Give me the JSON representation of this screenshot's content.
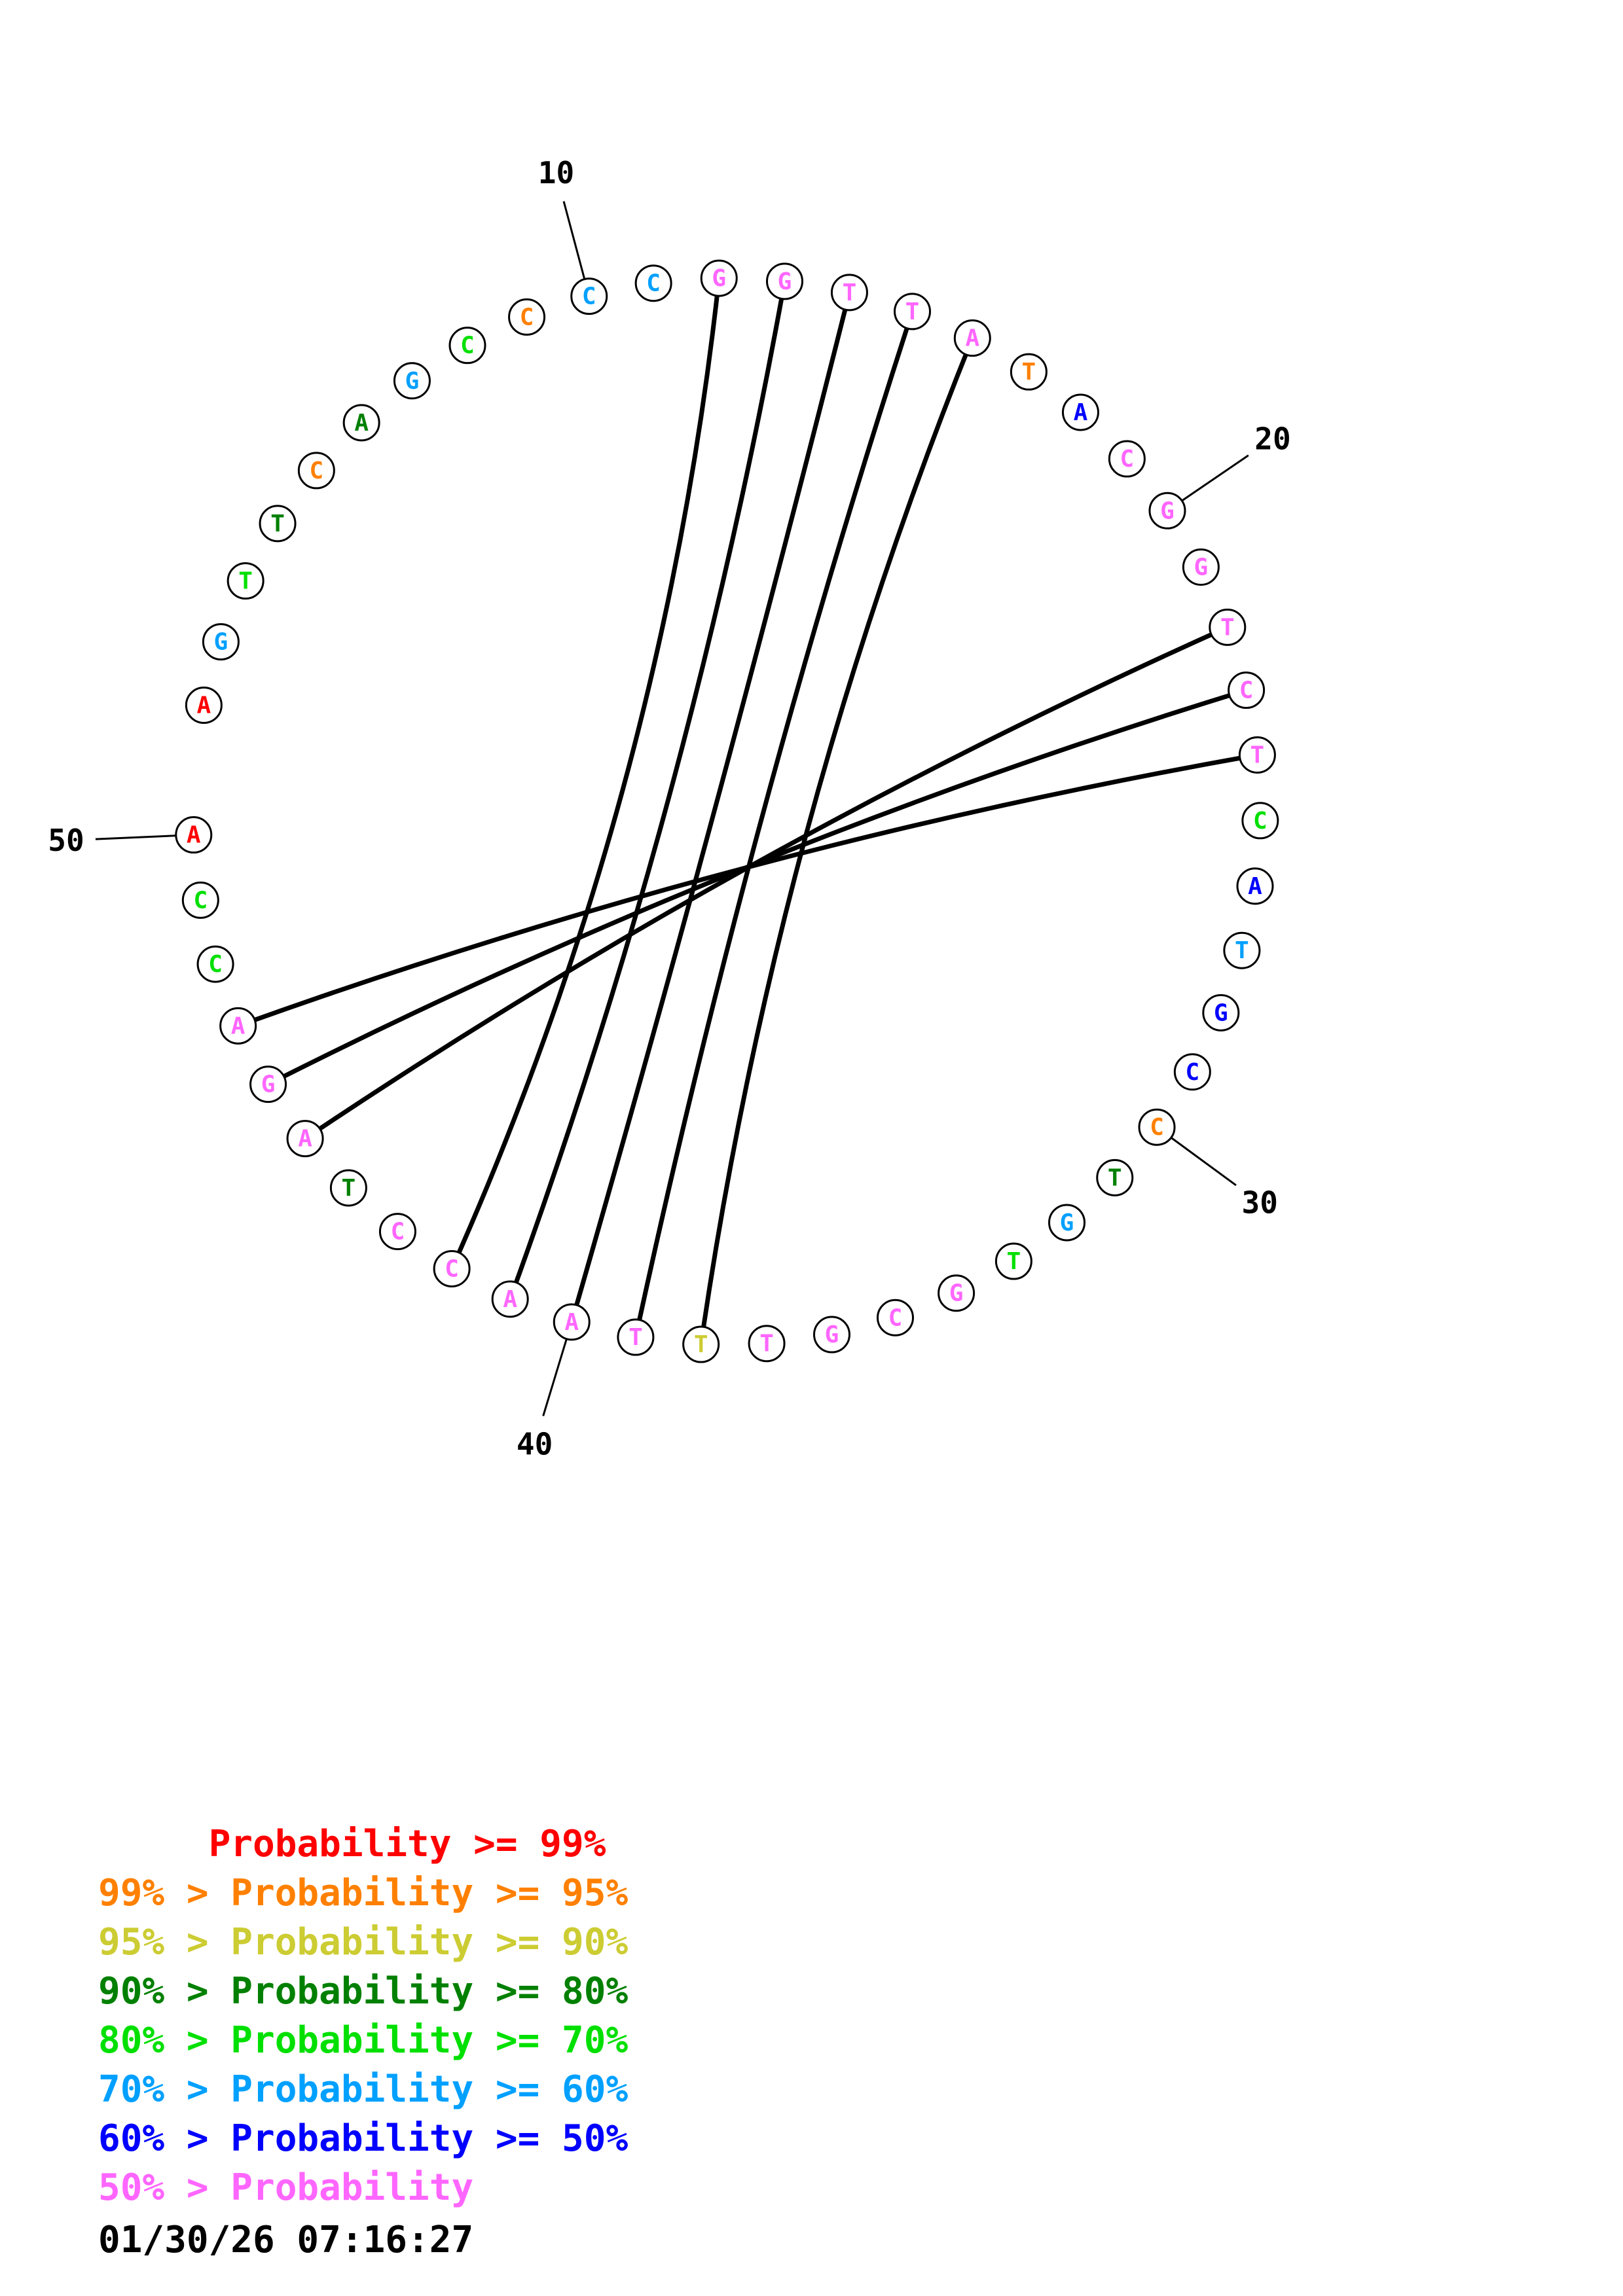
{
  "colors": {
    "p99": "#ff0000",
    "p95": "#ff8000",
    "p90": "#cccc33",
    "p80": "#008000",
    "p70": "#00e000",
    "p60": "#00a0ff",
    "p50": "#0000ff",
    "plow": "#ff66ff"
  },
  "sequence": [
    {
      "base": "A",
      "prob": "p99"
    },
    {
      "base": "G",
      "prob": "p60"
    },
    {
      "base": "T",
      "prob": "p70"
    },
    {
      "base": "T",
      "prob": "p80"
    },
    {
      "base": "C",
      "prob": "p95"
    },
    {
      "base": "A",
      "prob": "p80"
    },
    {
      "base": "G",
      "prob": "p60"
    },
    {
      "base": "C",
      "prob": "p70"
    },
    {
      "base": "C",
      "prob": "p95"
    },
    {
      "base": "C",
      "prob": "p60"
    },
    {
      "base": "C",
      "prob": "p60"
    },
    {
      "base": "G",
      "prob": "plow"
    },
    {
      "base": "G",
      "prob": "plow"
    },
    {
      "base": "T",
      "prob": "plow"
    },
    {
      "base": "T",
      "prob": "plow"
    },
    {
      "base": "A",
      "prob": "plow"
    },
    {
      "base": "T",
      "prob": "p95"
    },
    {
      "base": "A",
      "prob": "p50"
    },
    {
      "base": "C",
      "prob": "plow"
    },
    {
      "base": "G",
      "prob": "plow"
    },
    {
      "base": "G",
      "prob": "plow"
    },
    {
      "base": "T",
      "prob": "plow"
    },
    {
      "base": "C",
      "prob": "plow"
    },
    {
      "base": "T",
      "prob": "plow"
    },
    {
      "base": "C",
      "prob": "p70"
    },
    {
      "base": "A",
      "prob": "p50"
    },
    {
      "base": "T",
      "prob": "p60"
    },
    {
      "base": "G",
      "prob": "p50"
    },
    {
      "base": "C",
      "prob": "p50"
    },
    {
      "base": "C",
      "prob": "p95"
    },
    {
      "base": "T",
      "prob": "p80"
    },
    {
      "base": "G",
      "prob": "p60"
    },
    {
      "base": "T",
      "prob": "p70"
    },
    {
      "base": "G",
      "prob": "plow"
    },
    {
      "base": "C",
      "prob": "plow"
    },
    {
      "base": "G",
      "prob": "plow"
    },
    {
      "base": "T",
      "prob": "plow"
    },
    {
      "base": "T",
      "prob": "p90"
    },
    {
      "base": "T",
      "prob": "plow"
    },
    {
      "base": "A",
      "prob": "plow"
    },
    {
      "base": "A",
      "prob": "plow"
    },
    {
      "base": "C",
      "prob": "plow"
    },
    {
      "base": "C",
      "prob": "plow"
    },
    {
      "base": "T",
      "prob": "p80"
    },
    {
      "base": "A",
      "prob": "plow"
    },
    {
      "base": "G",
      "prob": "plow"
    },
    {
      "base": "A",
      "prob": "plow"
    },
    {
      "base": "C",
      "prob": "p70"
    },
    {
      "base": "C",
      "prob": "p70"
    },
    {
      "base": "A",
      "prob": "p99"
    }
  ],
  "pairs": [
    [
      12,
      42
    ],
    [
      13,
      41
    ],
    [
      14,
      40
    ],
    [
      15,
      39
    ],
    [
      16,
      38
    ],
    [
      22,
      45
    ],
    [
      23,
      46
    ],
    [
      24,
      47
    ]
  ],
  "position_labels": [
    {
      "pos": 10,
      "text": "10"
    },
    {
      "pos": 20,
      "text": "20"
    },
    {
      "pos": 30,
      "text": "30"
    },
    {
      "pos": 40,
      "text": "40"
    },
    {
      "pos": 50,
      "text": "50"
    }
  ],
  "legend": [
    {
      "text": "     Probability >= 99%",
      "color": "#ff0000"
    },
    {
      "text": "99% > Probability >= 95%",
      "color": "#ff8000"
    },
    {
      "text": "95% > Probability >= 90%",
      "color": "#cccc33"
    },
    {
      "text": "90% > Probability >= 80%",
      "color": "#008000"
    },
    {
      "text": "80% > Probability >= 70%",
      "color": "#00e000"
    },
    {
      "text": "70% > Probability >= 60%",
      "color": "#00a0ff"
    },
    {
      "text": "60% > Probability >= 50%",
      "color": "#0000ff"
    },
    {
      "text": "50% > Probability",
      "color": "#ff66ff"
    }
  ],
  "timestamp": "01/30/26 07:16:27"
}
